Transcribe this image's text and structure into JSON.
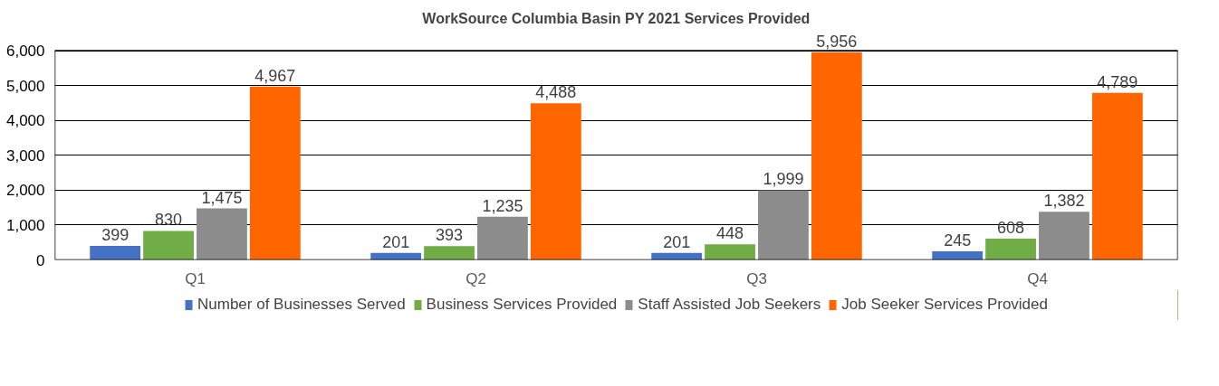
{
  "chart_data": {
    "type": "bar",
    "title": "WorkSource Columbia Basin PY 2021 Services Provided",
    "categories": [
      "Q1",
      "Q2",
      "Q3",
      "Q4"
    ],
    "series": [
      {
        "name": "Number of Businesses Served",
        "color": "#4472c4",
        "values": [
          399,
          201,
          201,
          245
        ],
        "value_labels": [
          "399",
          "201",
          "201",
          "245"
        ]
      },
      {
        "name": "Business Services Provided",
        "color": "#70ad47",
        "values": [
          830,
          393,
          448,
          608
        ],
        "value_labels": [
          "830",
          "393",
          "448",
          "608"
        ]
      },
      {
        "name": "Staff Assisted Job Seekers",
        "color": "#8c8c8c",
        "values": [
          1475,
          1235,
          1999,
          1382
        ],
        "value_labels": [
          "1,475",
          "1,235",
          "1,999",
          "1,382"
        ]
      },
      {
        "name": "Job Seeker Services Provided",
        "color": "#ff6600",
        "values": [
          4967,
          4488,
          5956,
          4789
        ],
        "value_labels": [
          "4,967",
          "4,488",
          "5,956",
          "4,789"
        ]
      }
    ],
    "ylim": [
      0,
      6000
    ],
    "yticks": [
      0,
      {
        "value": 1000,
        "label": "1,000"
      },
      {
        "value": 2000,
        "label": "2,000"
      },
      {
        "value": 3000,
        "label": "3,000"
      },
      {
        "value": 4000,
        "label": "4,000"
      },
      {
        "value": 5000,
        "label": "5,000"
      },
      {
        "value": 6000,
        "label": "6,000"
      }
    ],
    "grid": "y",
    "legend": "bottom"
  }
}
